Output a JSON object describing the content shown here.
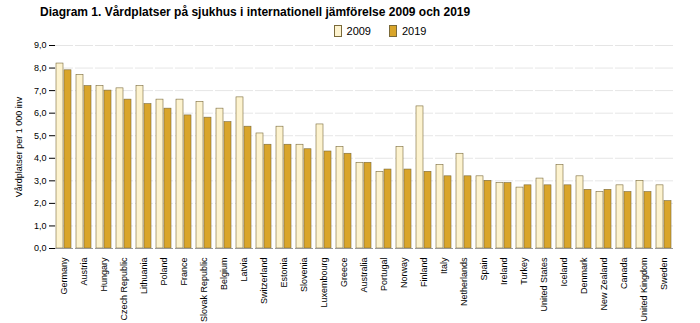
{
  "chart_data": {
    "type": "bar",
    "title": "Diagram 1. Vårdplatser på sjukhus i internationell jämförelse 2009 och 2019",
    "y_label": "Vårdplatser per 1 000 inv",
    "categories": [
      "Germany",
      "Austria",
      "Hungary",
      "Czech Republic",
      "Lithuania",
      "Poland",
      "France",
      "Slovak Republic",
      "Belgium",
      "Latvia",
      "Switzerland",
      "Estonia",
      "Slovenia",
      "Luxembourg",
      "Greece",
      "Australia",
      "Portugal",
      "Norway",
      "Finland",
      "Italy",
      "Netherlands",
      "Spain",
      "Ireland",
      "Turkey",
      "United States",
      "Iceland",
      "Denmark",
      "New Zealand",
      "Canada",
      "United Kingdom",
      "Sweden"
    ],
    "series": [
      {
        "name": "2009",
        "color": "#fdf3cf",
        "values": [
          8.2,
          7.7,
          7.2,
          7.1,
          7.2,
          6.6,
          6.6,
          6.5,
          6.2,
          6.7,
          5.1,
          5.4,
          4.6,
          5.5,
          4.5,
          3.8,
          3.4,
          4.5,
          6.3,
          3.7,
          4.2,
          3.2,
          2.9,
          2.7,
          3.1,
          3.7,
          3.2,
          2.5,
          2.8,
          3.0,
          2.8
        ]
      },
      {
        "name": "2019",
        "color": "#d9a52a",
        "values": [
          7.9,
          7.2,
          7.0,
          6.6,
          6.4,
          6.2,
          5.9,
          5.8,
          5.6,
          5.4,
          4.6,
          4.6,
          4.4,
          4.3,
          4.2,
          3.8,
          3.5,
          3.5,
          3.4,
          3.2,
          3.2,
          3.0,
          2.9,
          2.8,
          2.8,
          2.8,
          2.6,
          2.6,
          2.5,
          2.5,
          2.1
        ]
      }
    ],
    "ylim": [
      0,
      9
    ],
    "yticks": [
      {
        "value": 0,
        "label": "0,0"
      },
      {
        "value": 1,
        "label": "1,0"
      },
      {
        "value": 2,
        "label": "2,0"
      },
      {
        "value": 3,
        "label": "3,0"
      },
      {
        "value": 4,
        "label": "4,0"
      },
      {
        "value": 5,
        "label": "5,0"
      },
      {
        "value": 6,
        "label": "6,0"
      },
      {
        "value": 7,
        "label": "7,0"
      },
      {
        "value": 8,
        "label": "8,0"
      },
      {
        "value": 9,
        "label": "9,0"
      }
    ],
    "grid": true,
    "legend": "top"
  }
}
